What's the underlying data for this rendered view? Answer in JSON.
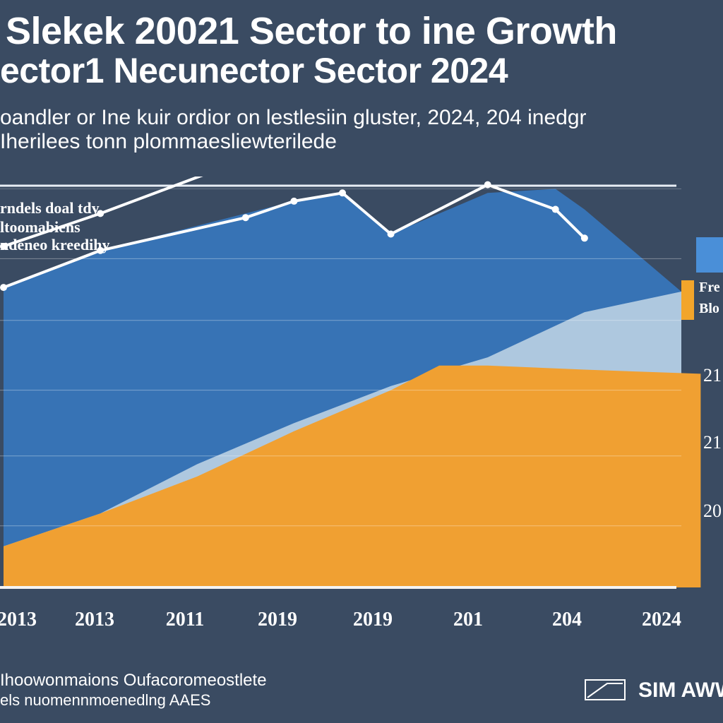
{
  "header": {
    "title": "Slekek 20021 Sector to ine Growth",
    "subtitle": "ector1 Necunector Sector 2024",
    "description_line1": "oandler or Ine kuir ordior on lestlesiin gluster, 2024, 204 inedgr",
    "description_line2": "Iherilees tonn plommaesliewterilede"
  },
  "colors": {
    "background": "#3a4b62",
    "blue_area": "#3773b5",
    "light_area": "#b9cfe3",
    "orange_area": "#f0a032",
    "line": "#ffffff",
    "legend_orange": "#f2a52b"
  },
  "chart_data": {
    "type": "area",
    "title": "Slekek 20021 Sector to ine Growth",
    "x_tick_labels": [
      "2013",
      "2013",
      "2011",
      "2019",
      "2019",
      "201",
      "204",
      "2024"
    ],
    "y_tick_labels": [
      "21",
      "21",
      "20"
    ],
    "ylim": [
      0,
      100
    ],
    "grid": true,
    "annotation_lines": [
      "rndels doal tdy",
      "ltoomabiens",
      "ndeneo kreedihy"
    ],
    "legend": [
      {
        "name": "Fre",
        "color": "#4a8fd8"
      },
      {
        "name": "Blo",
        "color": "#f2a52b"
      }
    ],
    "series": [
      {
        "name": "upper-trend-line",
        "kind": "line",
        "x": [
          0,
          1,
          2.7
        ],
        "values": [
          83,
          91,
          106
        ]
      },
      {
        "name": "main-line",
        "kind": "line",
        "x": [
          0,
          1,
          2.5,
          3,
          3.5,
          4,
          5,
          5.7,
          6
        ],
        "values": [
          73,
          82,
          90,
          94,
          96,
          86,
          98,
          92,
          85
        ]
      },
      {
        "name": "blue-area",
        "kind": "area",
        "x": [
          0,
          1,
          2,
          3,
          3.5,
          4,
          5,
          5.7,
          6,
          7
        ],
        "values": [
          73,
          82,
          88,
          94,
          96,
          86,
          96,
          97,
          92,
          72
        ]
      },
      {
        "name": "light-area",
        "kind": "area",
        "x": [
          0,
          1,
          2,
          3,
          4,
          5,
          6,
          7
        ],
        "values": [
          10,
          18,
          30,
          40,
          49,
          56,
          67,
          72
        ]
      },
      {
        "name": "orange-area",
        "kind": "area",
        "x": [
          0,
          1,
          2,
          3,
          4,
          4.5,
          5,
          6,
          7.2
        ],
        "values": [
          10,
          18,
          27,
          38,
          48,
          54,
          54,
          53,
          52
        ]
      }
    ]
  },
  "footer": {
    "line1": "Ihoowonmaions Oufacoromeostlete",
    "line2": "els nuomennmoenedlng AAES",
    "logo_text": "SIM AWW"
  }
}
